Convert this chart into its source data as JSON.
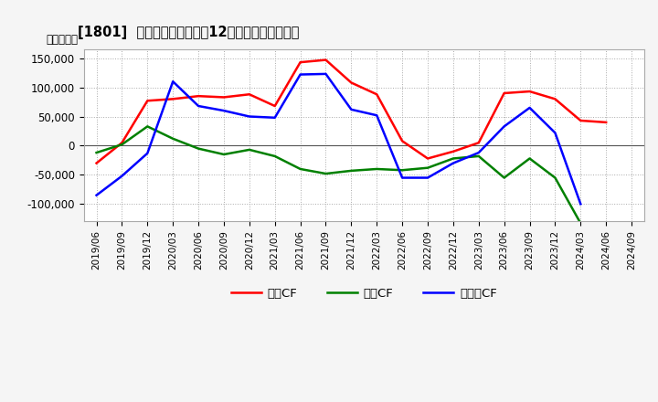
{
  "title": "[1801]  キャッシュフローの12か月移動合計の推移",
  "ylabel": "（百万円）",
  "ylim": [
    -130000,
    165000
  ],
  "yticks": [
    -100000,
    -50000,
    0,
    50000,
    100000,
    150000
  ],
  "legend": [
    "営業CF",
    "投資CF",
    "フリーCF"
  ],
  "legend_colors": [
    "#ff0000",
    "#008000",
    "#0000ff"
  ],
  "x_labels": [
    "2019/06",
    "2019/09",
    "2019/12",
    "2020/03",
    "2020/06",
    "2020/09",
    "2020/12",
    "2021/03",
    "2021/06",
    "2021/09",
    "2021/12",
    "2022/03",
    "2022/06",
    "2022/09",
    "2022/12",
    "2023/03",
    "2023/06",
    "2023/09",
    "2023/12",
    "2024/03",
    "2024/06",
    "2024/09"
  ],
  "operating_cf": [
    -30000,
    5000,
    77000,
    80000,
    85000,
    83000,
    88000,
    68000,
    143000,
    147000,
    108000,
    88000,
    8000,
    -22000,
    -10000,
    5000,
    90000,
    93000,
    80000,
    43000,
    40000,
    null
  ],
  "investing_cf": [
    -12000,
    2000,
    33000,
    12000,
    -5000,
    -15000,
    -7000,
    -18000,
    -40000,
    -48000,
    -43000,
    -40000,
    -42000,
    -38000,
    -22000,
    -18000,
    -55000,
    -22000,
    -55000,
    -133000,
    null,
    null
  ],
  "free_cf": [
    -85000,
    -52000,
    -13000,
    110000,
    68000,
    60000,
    50000,
    48000,
    122000,
    123000,
    62000,
    52000,
    -55000,
    -55000,
    -30000,
    -12000,
    33000,
    65000,
    22000,
    -100000,
    null,
    null
  ],
  "bg_color": "#f5f5f5",
  "plot_bg": "#ffffff"
}
